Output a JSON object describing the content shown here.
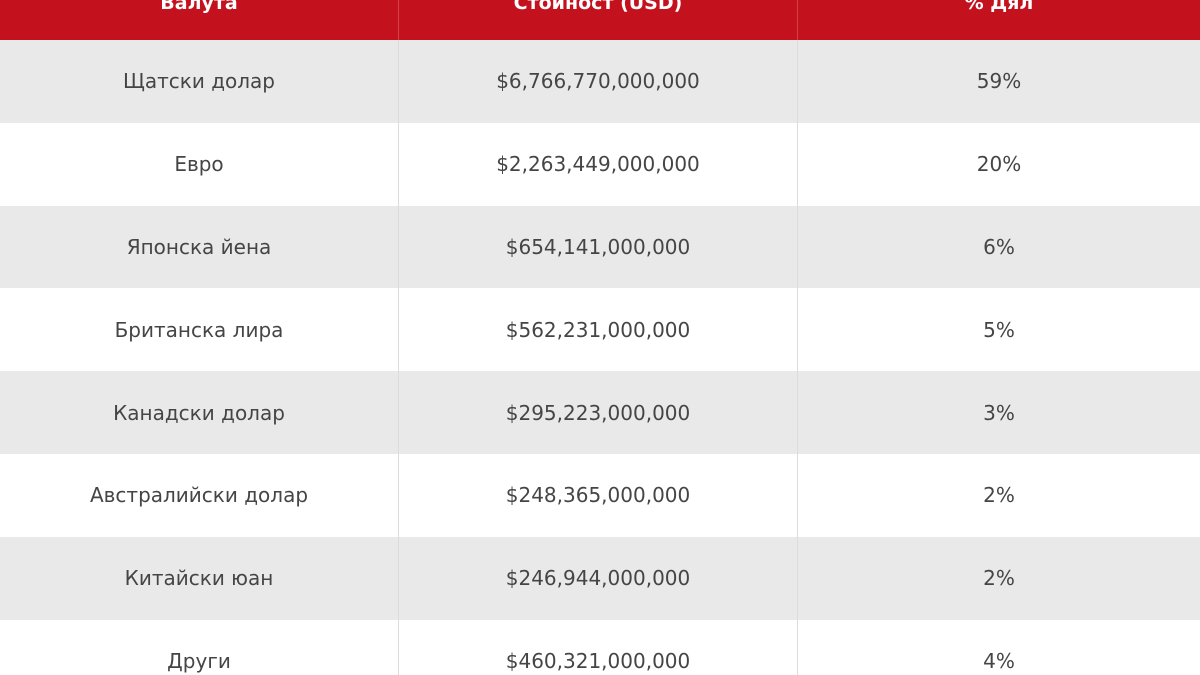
{
  "table": {
    "header": [
      "Валута",
      "Стойност (USD)",
      "% Дял"
    ],
    "rows": [
      [
        "Щатски долар",
        "$6,766,770,000,000",
        "59%"
      ],
      [
        "Евро",
        "$2,263,449,000,000",
        "20%"
      ],
      [
        "Японска йена",
        "$654,141,000,000",
        "6%"
      ],
      [
        "Британска лира",
        "$562,231,000,000",
        "5%"
      ],
      [
        "Канадски долар",
        "$295,223,000,000",
        "3%"
      ],
      [
        "Австралийски долар",
        "$248,365,000,000",
        "2%"
      ],
      [
        "Китайски юан",
        "$246,944,000,000",
        "2%"
      ],
      [
        "Други",
        "$460,321,000,000",
        "4%"
      ]
    ]
  }
}
